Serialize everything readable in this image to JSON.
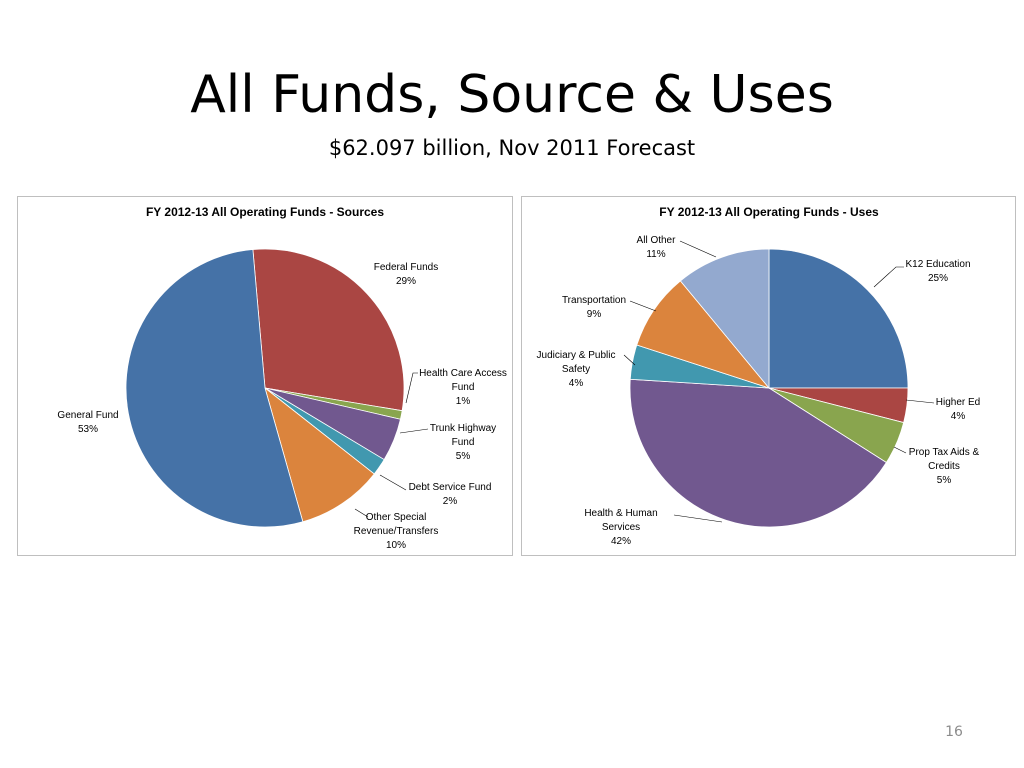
{
  "slide": {
    "title": "All Funds, Source & Uses",
    "subtitle": "$62.097 billion, Nov 2011 Forecast",
    "page_number": "16"
  },
  "chart_data": [
    {
      "type": "pie",
      "title": "FY 2012-13 All Operating Funds - Sources",
      "start_angle_deg": -5,
      "slices": [
        {
          "name": "Federal Funds",
          "value": 29,
          "label_lines": [
            "Federal Funds",
            "29%"
          ],
          "color": "#AA4643"
        },
        {
          "name": "Health Care Access Fund",
          "value": 1,
          "label_lines": [
            "Health Care Access",
            "Fund",
            "1%"
          ],
          "color": "#89A54E"
        },
        {
          "name": "Trunk Highway Fund",
          "value": 5,
          "label_lines": [
            "Trunk Highway",
            "Fund",
            "5%"
          ],
          "color": "#71588F"
        },
        {
          "name": "Debt Service Fund",
          "value": 2,
          "label_lines": [
            "Debt Service Fund",
            "2%"
          ],
          "color": "#4198AF"
        },
        {
          "name": "Other Special Revenue/Transfers",
          "value": 10,
          "label_lines": [
            "Other Special",
            "Revenue/Transfers",
            "10%"
          ],
          "color": "#DB843D"
        },
        {
          "name": "General Fund",
          "value": 53,
          "label_lines": [
            "General Fund",
            "53%"
          ],
          "color": "#4572A7"
        }
      ]
    },
    {
      "type": "pie",
      "title": "FY 2012-13 All Operating Funds - Uses",
      "start_angle_deg": 0,
      "slices": [
        {
          "name": "K12 Education",
          "value": 25,
          "label_lines": [
            "K12 Education",
            "25%"
          ],
          "color": "#4572A7"
        },
        {
          "name": "Higher Ed",
          "value": 4,
          "label_lines": [
            "Higher Ed",
            "4%"
          ],
          "color": "#AA4643"
        },
        {
          "name": "Prop Tax Aids & Credits",
          "value": 5,
          "label_lines": [
            "Prop Tax Aids &",
            "Credits",
            "5%"
          ],
          "color": "#89A54E"
        },
        {
          "name": "Health & Human Services",
          "value": 42,
          "label_lines": [
            "Health & Human",
            "Services",
            "42%"
          ],
          "color": "#71588F"
        },
        {
          "name": "Judiciary & Public Safety",
          "value": 4,
          "label_lines": [
            "Judiciary & Public",
            "Safety",
            "4%"
          ],
          "color": "#4198AF"
        },
        {
          "name": "Transportation",
          "value": 9,
          "label_lines": [
            "Transportation",
            "9%"
          ],
          "color": "#DB843D"
        },
        {
          "name": "All Other",
          "value": 11,
          "label_lines": [
            "All Other",
            "11%"
          ],
          "color": "#93A9CF"
        }
      ]
    }
  ]
}
